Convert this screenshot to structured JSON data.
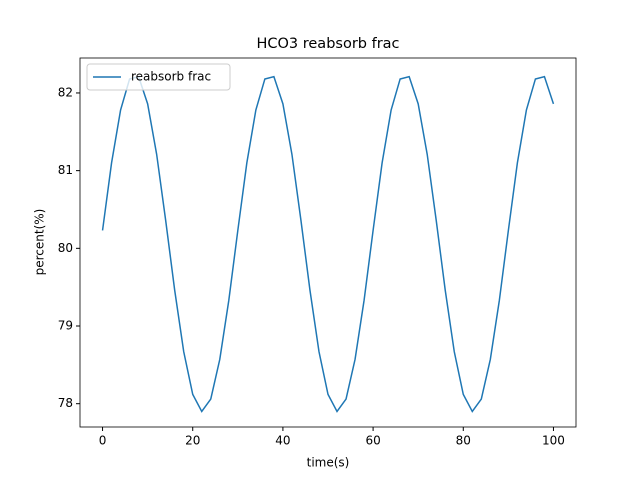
{
  "chart_data": {
    "type": "line",
    "title": "HCO3 reabsorb frac",
    "x_label": "time(s)",
    "y_label": "percent(%)",
    "x": [
      0,
      2,
      4,
      6,
      8,
      10,
      12,
      14,
      16,
      18,
      20,
      22,
      24,
      26,
      28,
      30,
      32,
      34,
      36,
      38,
      40,
      42,
      44,
      46,
      48,
      50,
      52,
      54,
      56,
      58,
      60,
      62,
      64,
      66,
      68,
      70,
      72,
      74,
      76,
      78,
      80,
      82,
      84,
      86,
      88,
      90,
      92,
      94,
      96,
      98,
      100
    ],
    "series": [
      {
        "name": "reabsorb frac",
        "color": "#1f77b4",
        "values": [
          80.23,
          81.1,
          81.78,
          82.18,
          82.21,
          81.86,
          81.21,
          80.36,
          79.46,
          78.67,
          78.12,
          77.9,
          78.06,
          78.57,
          79.33,
          80.23,
          81.1,
          81.78,
          82.18,
          82.21,
          81.86,
          81.21,
          80.36,
          79.46,
          78.67,
          78.12,
          77.9,
          78.06,
          78.57,
          79.33,
          80.23,
          81.1,
          81.78,
          82.18,
          82.21,
          81.86,
          81.21,
          80.36,
          79.46,
          78.67,
          78.12,
          77.9,
          78.06,
          78.57,
          79.33,
          80.23,
          81.1,
          81.78,
          82.18,
          82.21,
          81.86
        ]
      }
    ],
    "xlim": [
      -5,
      105
    ],
    "ylim": [
      77.7,
      82.45
    ],
    "xticks": [
      0,
      20,
      40,
      60,
      80,
      100
    ],
    "yticks": [
      78,
      79,
      80,
      81,
      82
    ],
    "legend": "upper left"
  }
}
